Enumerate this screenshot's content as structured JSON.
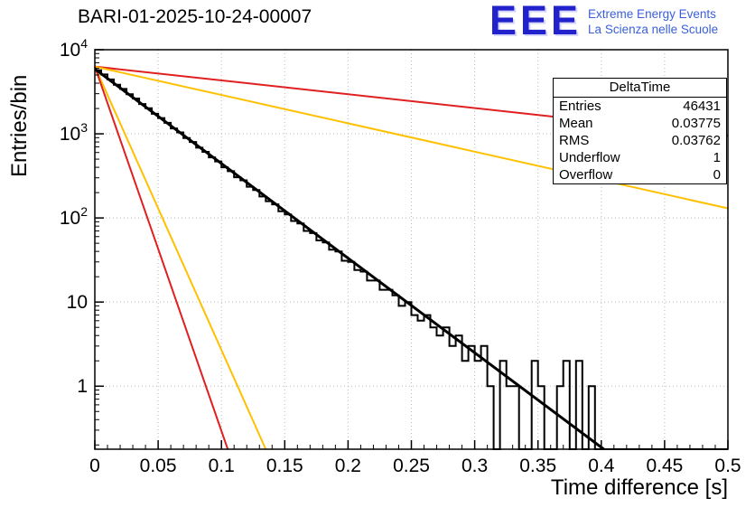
{
  "header": {
    "title": "BARI-01-2025-10-24-00007"
  },
  "logo": {
    "acronym": "EEE",
    "line1": "Extreme Energy Events",
    "line2": "La Scienza nelle Scuole",
    "color": "#2222cc",
    "text_color": "#3a5fd9"
  },
  "stats": {
    "title": "DeltaTime",
    "rows": [
      {
        "label": "Entries",
        "value": "46431"
      },
      {
        "label": "Mean",
        "value": "0.03775"
      },
      {
        "label": "RMS",
        "value": "0.03762"
      },
      {
        "label": "Underflow",
        "value": "1"
      },
      {
        "label": "Overflow",
        "value": "0"
      }
    ]
  },
  "chart_data": {
    "type": "histogram",
    "title": "BARI-01-2025-10-24-00007",
    "xlabel": "Time difference [s]",
    "ylabel": "Entries/bin",
    "xlim": [
      0,
      0.5
    ],
    "ylim": [
      0.178,
      10000
    ],
    "yscale": "log",
    "grid": true,
    "grid_color": "#b8b8b8",
    "x_major_ticks": [
      0,
      0.05,
      0.1,
      0.15,
      0.2,
      0.25,
      0.3,
      0.35,
      0.4,
      0.45,
      0.5
    ],
    "x_tick_labels": [
      "0",
      "0.05",
      "0.1",
      "0.15",
      "0.2",
      "0.25",
      "0.3",
      "0.35",
      "0.4",
      "0.45",
      "0.5"
    ],
    "x_minor_step": 0.01,
    "y_major_ticks": [
      {
        "v": 1,
        "m": "1",
        "e": ""
      },
      {
        "v": 10,
        "m": "10",
        "e": ""
      },
      {
        "v": 100,
        "m": "10",
        "e": "2"
      },
      {
        "v": 1000,
        "m": "10",
        "e": "3"
      },
      {
        "v": 10000,
        "m": "10",
        "e": "4"
      }
    ],
    "bin_start": 0,
    "bin_width": 0.005,
    "bins": [
      5700,
      5080,
      4430,
      3830,
      3420,
      2950,
      2630,
      2260,
      2010,
      1730,
      1540,
      1350,
      1160,
      1040,
      890,
      800,
      685,
      610,
      525,
      470,
      400,
      360,
      305,
      280,
      235,
      215,
      180,
      158,
      145,
      120,
      110,
      92,
      86,
      70,
      66,
      54,
      51,
      42,
      40,
      31,
      30,
      24,
      23,
      18,
      18,
      14,
      14,
      12,
      9,
      10,
      7,
      6,
      7,
      5,
      4,
      5,
      3,
      4,
      2,
      3,
      2,
      3,
      1,
      0,
      2,
      1,
      1,
      0,
      0,
      2,
      1,
      0,
      0,
      1,
      2,
      0,
      2,
      0,
      1,
      0,
      0,
      0,
      0,
      0,
      0,
      0,
      0,
      0,
      0,
      0,
      0,
      0,
      0,
      0,
      0,
      0,
      0,
      0,
      0,
      0
    ],
    "hist_color": "#000000",
    "fit_line": {
      "name": "exponential-fit",
      "color": "#000000",
      "width": 3,
      "x": [
        0,
        0.402
      ],
      "y": [
        5900,
        0.178
      ]
    },
    "ref_lines": [
      {
        "name": "red-shallow",
        "color": "#e02020",
        "width": 2,
        "x": [
          0,
          0.5
        ],
        "y": [
          6300,
          950
        ]
      },
      {
        "name": "yellow-shallow",
        "color": "#ffc000",
        "width": 2,
        "x": [
          0,
          0.5
        ],
        "y": [
          6300,
          130
        ]
      },
      {
        "name": "yellow-steep",
        "color": "#ffc000",
        "width": 2,
        "x": [
          0,
          0.135
        ],
        "y": [
          6300,
          0.178
        ]
      },
      {
        "name": "red-steep",
        "color": "#e02020",
        "width": 2,
        "x": [
          0,
          0.105
        ],
        "y": [
          6300,
          0.178
        ]
      }
    ]
  }
}
